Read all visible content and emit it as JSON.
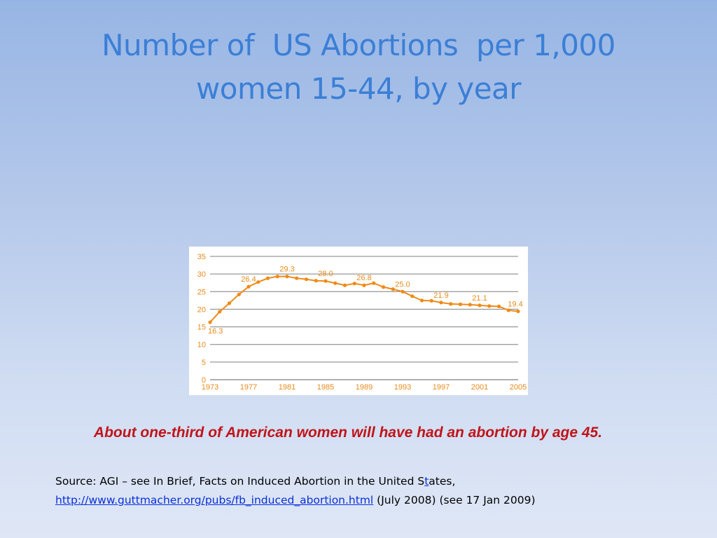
{
  "slide": {
    "title_lines": [
      "Number of  US Abortions  per 1,000",
      "women 15-44, by year"
    ],
    "note": "About one-third of American women will have had an abortion by age 45.",
    "source": {
      "line1_prefix": "Source: AGI – see In Brief, Facts on Induced Abortion in the United S",
      "line1_blue": "t",
      "line1_suffix": "ates,",
      "link_text": "http://www.guttmacher.org/pubs/fb_induced_abortion.html",
      "line2_suffix": "  (July 2008) (see 17 Jan 2009)"
    },
    "colors": {
      "title": "#3b7fd6",
      "note": "#c0141b",
      "link": "#0a2fd8",
      "series": "#ef8a17",
      "grid": "#7f7f7f"
    }
  },
  "chart_data": {
    "type": "line",
    "title": "",
    "xlabel": "",
    "ylabel": "",
    "x": [
      1973,
      1974,
      1975,
      1976,
      1977,
      1978,
      1979,
      1980,
      1981,
      1982,
      1983,
      1984,
      1985,
      1986,
      1987,
      1988,
      1989,
      1990,
      1991,
      1992,
      1993,
      1994,
      1995,
      1996,
      1997,
      1998,
      1999,
      2000,
      2001,
      2002,
      2003,
      2004,
      2005
    ],
    "series": [
      {
        "values": [
          16.3,
          19.3,
          21.7,
          24.2,
          26.4,
          27.7,
          28.8,
          29.3,
          29.3,
          28.8,
          28.5,
          28.1,
          28.0,
          27.4,
          26.8,
          27.3,
          26.8,
          27.4,
          26.3,
          25.7,
          25.0,
          23.7,
          22.5,
          22.4,
          21.9,
          21.5,
          21.4,
          21.3,
          21.1,
          20.9,
          20.8,
          19.7,
          19.4
        ]
      }
    ],
    "data_labels": [
      {
        "x": 1973,
        "text": "16.3"
      },
      {
        "x": 1977,
        "text": "26.4"
      },
      {
        "x": 1981,
        "text": "29.3"
      },
      {
        "x": 1985,
        "text": "28.0"
      },
      {
        "x": 1989,
        "text": "26.8"
      },
      {
        "x": 1993,
        "text": "25.0"
      },
      {
        "x": 1997,
        "text": "21.9"
      },
      {
        "x": 2001,
        "text": "21.1"
      },
      {
        "x": 2005,
        "text": "19.4"
      }
    ],
    "x_ticks": [
      1973,
      1977,
      1981,
      1985,
      1989,
      1993,
      1997,
      2001,
      2005
    ],
    "y_ticks": [
      0,
      5,
      10,
      15,
      20,
      25,
      30,
      35
    ],
    "ylim": [
      0,
      35
    ],
    "xlim": [
      1973,
      2005
    ],
    "grid": true,
    "legend": "none"
  }
}
